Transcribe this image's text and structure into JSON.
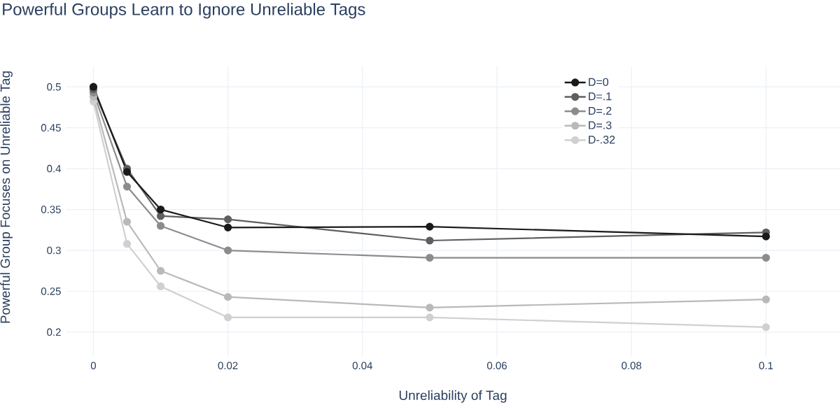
{
  "chart_data": {
    "type": "line",
    "title": "Powerful Groups Learn to Ignore Unreliable Tags",
    "xlabel": "Unreliability of Tag",
    "ylabel": "Powerful Group Focuses on Unreliable Tag",
    "x": [
      0,
      0.005,
      0.01,
      0.02,
      0.05,
      0.1
    ],
    "series": [
      {
        "name": "D=0",
        "color": "#1a1a1a",
        "values": [
          0.5,
          0.396,
          0.35,
          0.328,
          0.329,
          0.317
        ]
      },
      {
        "name": "D=.1",
        "color": "#5f5f5f",
        "values": [
          0.497,
          0.4,
          0.342,
          0.338,
          0.312,
          0.322
        ]
      },
      {
        "name": "D=.2",
        "color": "#8c8c8c",
        "values": [
          0.493,
          0.378,
          0.33,
          0.3,
          0.291,
          0.291
        ]
      },
      {
        "name": "D=.3",
        "color": "#b9b9b9",
        "values": [
          0.488,
          0.335,
          0.275,
          0.243,
          0.23,
          0.24
        ]
      },
      {
        "name": "D-.32",
        "color": "#d0d0d0",
        "values": [
          0.482,
          0.308,
          0.256,
          0.218,
          0.218,
          0.206
        ]
      }
    ],
    "xlim": [
      -0.004,
      0.111
    ],
    "ylim": [
      0.17,
      0.525
    ],
    "xticks": [
      0,
      0.02,
      0.04,
      0.06,
      0.08,
      0.1
    ],
    "yticks": [
      0.2,
      0.25,
      0.3,
      0.35,
      0.4,
      0.45,
      0.5
    ],
    "grid": true,
    "legend": "top right",
    "marker": "circle",
    "line_style": "solid"
  }
}
